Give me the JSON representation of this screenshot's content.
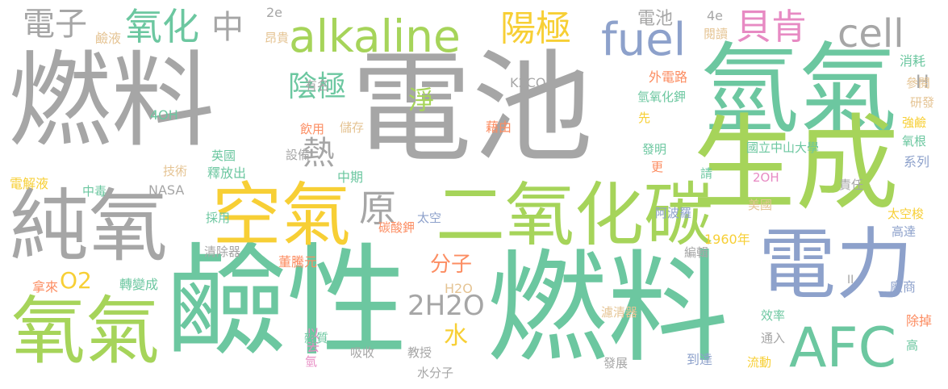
{
  "colors": {
    "gray": "#a6a6a6",
    "teal": "#6cc7a0",
    "green": "#a6d45a",
    "yellow": "#f7cf35",
    "blue": "#8da1cb",
    "pink": "#e78ac3",
    "orange": "#fc8d62",
    "tan": "#e5c494"
  },
  "words": [
    {
      "text": "燃料",
      "color": "gray"
    },
    {
      "text": "電池",
      "color": "gray"
    },
    {
      "text": "氫氣",
      "color": "teal"
    },
    {
      "text": "鹼性",
      "color": "teal"
    },
    {
      "text": "燃料",
      "color": "teal"
    },
    {
      "text": "生成",
      "color": "green"
    },
    {
      "text": "純氧",
      "color": "gray"
    },
    {
      "text": "氧氣",
      "color": "green"
    },
    {
      "text": "電力",
      "color": "blue"
    },
    {
      "text": "二氧化碳",
      "color": "green"
    },
    {
      "text": "空氣",
      "color": "yellow"
    },
    {
      "text": "alkaline",
      "color": "green"
    },
    {
      "text": "fuel",
      "color": "blue"
    },
    {
      "text": "cell",
      "color": "gray"
    },
    {
      "text": "AFC",
      "color": "teal"
    },
    {
      "text": "電子",
      "color": "gray"
    },
    {
      "text": "氧化",
      "color": "teal"
    },
    {
      "text": "中",
      "color": "gray"
    },
    {
      "text": "陽極",
      "color": "yellow"
    },
    {
      "text": "貝肯",
      "color": "pink"
    },
    {
      "text": "陰極",
      "color": "teal"
    },
    {
      "text": "原",
      "color": "gray"
    },
    {
      "text": "熱",
      "color": "gray"
    },
    {
      "text": "淨",
      "color": "green"
    },
    {
      "text": "分子",
      "color": "orange"
    },
    {
      "text": "2H2O",
      "color": "gray"
    },
    {
      "text": "水",
      "color": "yellow"
    },
    {
      "text": "O2",
      "color": "yellow"
    },
    {
      "text": "H",
      "color": "gray"
    },
    {
      "text": "2e",
      "color": "gray"
    },
    {
      "text": "4e",
      "color": "gray"
    },
    {
      "text": "電池",
      "color": "gray"
    },
    {
      "text": "鹼液",
      "color": "tan"
    },
    {
      "text": "昂貴",
      "color": "tan"
    },
    {
      "text": "閱讀",
      "color": "tan"
    },
    {
      "text": "有名",
      "color": "gray"
    },
    {
      "text": "K2CO",
      "color": "gray"
    },
    {
      "text": "消耗",
      "color": "teal"
    },
    {
      "text": "外電路",
      "color": "orange"
    },
    {
      "text": "參閱",
      "color": "tan"
    },
    {
      "text": "氫氧化鉀",
      "color": "teal"
    },
    {
      "text": "研發",
      "color": "tan"
    },
    {
      "text": "4OH",
      "color": "teal"
    },
    {
      "text": "飲用",
      "color": "orange"
    },
    {
      "text": "儲存",
      "color": "tan"
    },
    {
      "text": "先",
      "color": "yellow"
    },
    {
      "text": "強鹼",
      "color": "yellow"
    },
    {
      "text": "藉由",
      "color": "orange"
    },
    {
      "text": "英國",
      "color": "teal"
    },
    {
      "text": "設備",
      "color": "gray"
    },
    {
      "text": "國立中山大學",
      "color": "teal"
    },
    {
      "text": "氧根",
      "color": "teal"
    },
    {
      "text": "發明",
      "color": "teal"
    },
    {
      "text": "技術",
      "color": "tan"
    },
    {
      "text": "釋放出",
      "color": "teal"
    },
    {
      "text": "系列",
      "color": "blue"
    },
    {
      "text": "更",
      "color": "orange"
    },
    {
      "text": "請",
      "color": "teal"
    },
    {
      "text": "電解液",
      "color": "yellow"
    },
    {
      "text": "中期",
      "color": "teal"
    },
    {
      "text": "2OH",
      "color": "pink"
    },
    {
      "text": "NASA",
      "color": "gray"
    },
    {
      "text": "中毒",
      "color": "teal"
    },
    {
      "text": "責任",
      "color": "gray"
    },
    {
      "text": "太空",
      "color": "blue"
    },
    {
      "text": "阿波羅",
      "color": "blue"
    },
    {
      "text": "美國",
      "color": "tan"
    },
    {
      "text": "採用",
      "color": "teal"
    },
    {
      "text": "碳酸鉀",
      "color": "orange"
    },
    {
      "text": "太空梭",
      "color": "yellow"
    },
    {
      "text": "高達",
      "color": "blue"
    },
    {
      "text": "1960年",
      "color": "yellow"
    },
    {
      "text": "清除器",
      "color": "gray"
    },
    {
      "text": "董騰元",
      "color": "orange"
    },
    {
      "text": "編輯",
      "color": "gray"
    },
    {
      "text": "拿來",
      "color": "orange"
    },
    {
      "text": "轉變成",
      "color": "teal"
    },
    {
      "text": "II",
      "color": "gray"
    },
    {
      "text": "H2O",
      "color": "tan"
    },
    {
      "text": "廠商",
      "color": "blue"
    },
    {
      "text": "濾清器",
      "color": "tan"
    },
    {
      "text": "效率",
      "color": "teal"
    },
    {
      "text": "以去",
      "color": "pink"
    },
    {
      "text": "除掉",
      "color": "orange"
    },
    {
      "text": "雜質",
      "color": "teal"
    },
    {
      "text": "吸收",
      "color": "gray"
    },
    {
      "text": "通入",
      "color": "gray"
    },
    {
      "text": "氫",
      "color": "pink"
    },
    {
      "text": "教授",
      "color": "gray"
    },
    {
      "text": "到達",
      "color": "blue"
    },
    {
      "text": "高",
      "color": "teal"
    },
    {
      "text": "流動",
      "color": "yellow"
    },
    {
      "text": "發展",
      "color": "gray"
    },
    {
      "text": "水分子",
      "color": "gray"
    }
  ]
}
